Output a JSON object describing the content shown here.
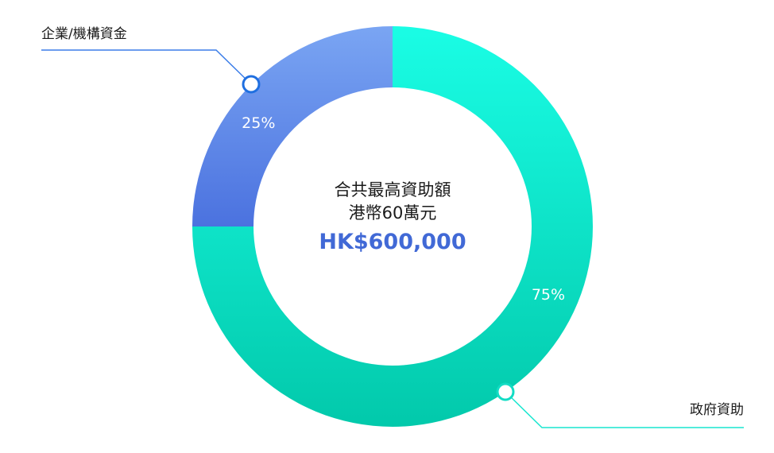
{
  "chart_data": {
    "type": "pie",
    "variant": "donut",
    "slices": [
      {
        "label": "企業/機構資金",
        "value": 25,
        "value_label": "25%",
        "color_top": "#7aa5f3",
        "color_bottom": "#4b72df"
      },
      {
        "label": "政府資助",
        "value": 75,
        "value_label": "75%",
        "color_top": "#1afde5",
        "color_bottom": "#02c9ab"
      }
    ],
    "center": {
      "line1": "合共最高資助額",
      "line2": "港幣60萬元",
      "amount": "HK$600,000",
      "amount_color": "#4169d6"
    },
    "callouts": {
      "corp": {
        "line_color": "#3b7de8",
        "dot_color": "#1f6fe0"
      },
      "gov": {
        "line_color": "#19e6cf",
        "dot_color": "#12dcc4"
      }
    }
  }
}
